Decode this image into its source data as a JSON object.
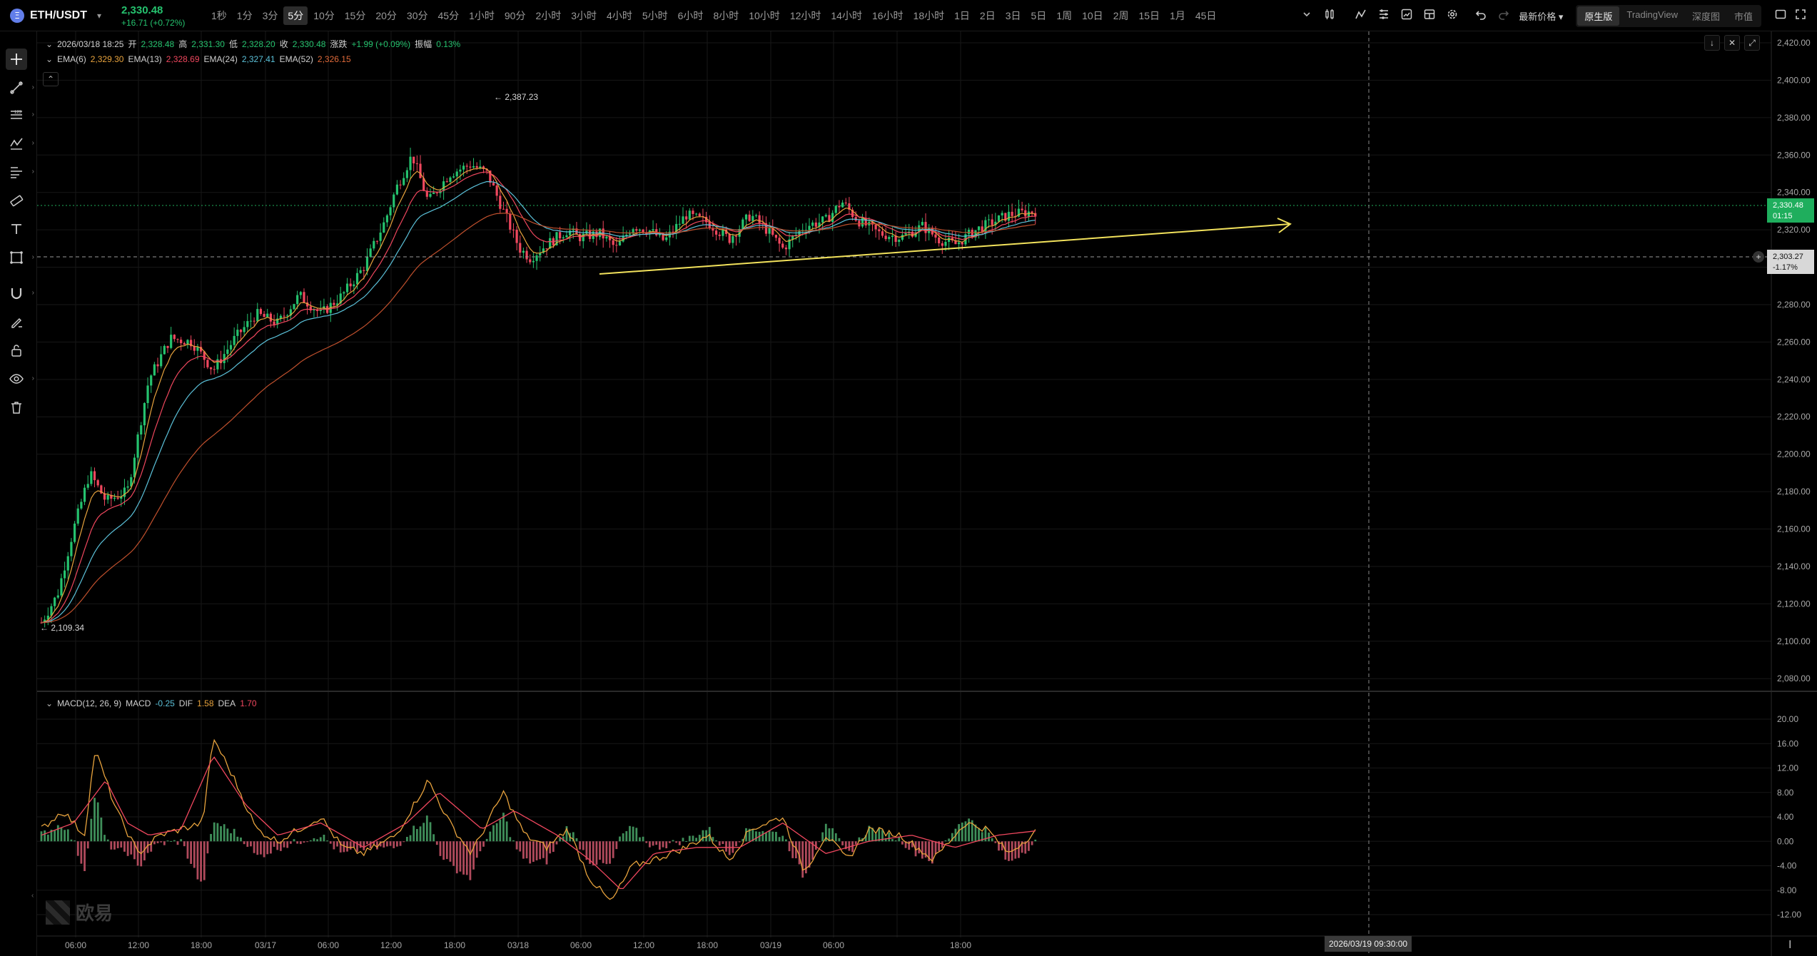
{
  "pair": {
    "name": "ETH/USDT",
    "coin_icon": "Ξ",
    "price": "2,330.48",
    "change": "+16.71 (+0.72%)"
  },
  "intervals": [
    "1秒",
    "1分",
    "3分",
    "5分",
    "10分",
    "15分",
    "20分",
    "30分",
    "45分",
    "1小时",
    "90分",
    "2小时",
    "3小时",
    "4小时",
    "5小时",
    "6小时",
    "8小时",
    "10小时",
    "12小时",
    "14小时",
    "16小时",
    "18小时",
    "1日",
    "2日",
    "3日",
    "5日",
    "1周",
    "10日",
    "2周",
    "15日",
    "1月",
    "45日"
  ],
  "active_interval": "5分",
  "toolbar_icons": [
    "dropdown-icon",
    "candle-type-icon",
    "indicators-icon",
    "templates-icon",
    "alert-icon",
    "layout-icon",
    "settings-icon",
    "undo-icon",
    "redo-icon"
  ],
  "top_right": {
    "price_type": "最新价格",
    "views": [
      "原生版",
      "TradingView",
      "深度图",
      "市值"
    ],
    "active_view": "原生版"
  },
  "left_tools": [
    "crosshair-icon",
    "trendline-icon",
    "fib-icon",
    "pattern-icon",
    "prediction-icon",
    "measure-icon",
    "text-icon",
    "shapes-icon",
    "magnet-icon",
    "draw-lock-icon",
    "lock-icon",
    "eye-icon",
    "trash-icon"
  ],
  "legend": {
    "date": "2026/03/18 18:25",
    "open_label": "开",
    "open": "2,328.48",
    "high_label": "高",
    "high": "2,331.30",
    "low_label": "低",
    "low": "2,328.20",
    "close_label": "收",
    "close": "2,330.48",
    "change_label": "涨跌",
    "change": "+1.99 (+0.09%)",
    "amp_label": "振幅",
    "amp": "0.13%",
    "ema6_label": "EMA(6)",
    "ema6": "2,329.30",
    "ema13_label": "EMA(13)",
    "ema13": "2,328.69",
    "ema24_label": "EMA(24)",
    "ema24": "2,327.41",
    "ema52_label": "EMA(52)",
    "ema52": "2,326.15"
  },
  "macd_legend": {
    "title": "MACD(12, 26, 9)",
    "macd_label": "MACD",
    "macd": "-0.25",
    "dif_label": "DIF",
    "dif": "1.58",
    "dea_label": "DEA",
    "dea": "1.70"
  },
  "last_price": {
    "price": "2,330.48",
    "countdown": "01:15"
  },
  "alert_price": {
    "price": "2,303.27",
    "pct": "-1.17%"
  },
  "crosshair_time": "2026/03/19 09:30:00",
  "watermark": "欧易",
  "colors": {
    "up": "#25c26e",
    "down": "#f0475e",
    "ema6": "#e8a33d",
    "ema13": "#f0475e",
    "ema24": "#5bc1d9",
    "ema52": "#c0502d",
    "trendline": "#f2e25c"
  },
  "chart_data": {
    "type": "candlestick",
    "price_axis": {
      "min": 2090,
      "max": 2420,
      "ticks": [
        "2,420.00",
        "2,400.00",
        "2,380.00",
        "2,360.00",
        "2,340.00",
        "2,320.00",
        "2,300.00",
        "2,280.00",
        "2,260.00",
        "2,240.00",
        "2,220.00",
        "2,200.00",
        "2,180.00",
        "2,160.00",
        "2,140.00",
        "2,120.00",
        "2,100.00",
        "2,080.00"
      ],
      "tick_values": [
        2420,
        2400,
        2380,
        2360,
        2340,
        2320,
        2300,
        2280,
        2260,
        2240,
        2220,
        2200,
        2180,
        2160,
        2140,
        2120,
        2100,
        2080
      ]
    },
    "time_axis": {
      "labels": [
        "06:00",
        "12:00",
        "18:00",
        "03/17",
        "06:00",
        "12:00",
        "18:00",
        "03/18",
        "06:00",
        "12:00",
        "18:00",
        "03/19",
        "06:00",
        "",
        "18:00"
      ]
    },
    "high_marker": "2,387.23",
    "low_marker": "2,109.34",
    "price_path": [
      [
        0,
        2110
      ],
      [
        0.015,
        2125
      ],
      [
        0.03,
        2160
      ],
      [
        0.045,
        2190
      ],
      [
        0.06,
        2175
      ],
      [
        0.08,
        2180
      ],
      [
        0.1,
        2240
      ],
      [
        0.12,
        2262
      ],
      [
        0.14,
        2260
      ],
      [
        0.16,
        2245
      ],
      [
        0.18,
        2262
      ],
      [
        0.2,
        2275
      ],
      [
        0.22,
        2270
      ],
      [
        0.24,
        2285
      ],
      [
        0.26,
        2275
      ],
      [
        0.28,
        2285
      ],
      [
        0.3,
        2300
      ],
      [
        0.32,
        2325
      ],
      [
        0.33,
        2342
      ],
      [
        0.345,
        2360
      ],
      [
        0.36,
        2335
      ],
      [
        0.38,
        2350
      ],
      [
        0.4,
        2355
      ],
      [
        0.415,
        2350
      ],
      [
        0.43,
        2330
      ],
      [
        0.445,
        2310
      ],
      [
        0.455,
        2305
      ],
      [
        0.47,
        2312
      ],
      [
        0.49,
        2320
      ],
      [
        0.5,
        2316
      ],
      [
        0.52,
        2318
      ],
      [
        0.535,
        2310
      ],
      [
        0.55,
        2322
      ],
      [
        0.565,
        2320
      ],
      [
        0.58,
        2314
      ],
      [
        0.6,
        2328
      ],
      [
        0.62,
        2324
      ],
      [
        0.64,
        2315
      ],
      [
        0.66,
        2328
      ],
      [
        0.675,
        2320
      ],
      [
        0.69,
        2310
      ],
      [
        0.71,
        2322
      ],
      [
        0.73,
        2325
      ],
      [
        0.745,
        2335
      ],
      [
        0.76,
        2325
      ],
      [
        0.78,
        2318
      ],
      [
        0.8,
        2316
      ],
      [
        0.82,
        2322
      ],
      [
        0.835,
        2315
      ],
      [
        0.85,
        2312
      ],
      [
        0.87,
        2320
      ],
      [
        0.9,
        2328
      ],
      [
        0.925,
        2330
      ]
    ],
    "macd": {
      "min": -12,
      "max": 20,
      "ticks": [
        "20.00",
        "16.00",
        "12.00",
        "8.00",
        "4.00",
        "0.00",
        "-4.00",
        "-8.00",
        "-12.00"
      ],
      "tick_values": [
        20,
        16,
        12,
        8,
        4,
        0,
        -4,
        -8,
        -12
      ],
      "dif_path": [
        [
          0,
          2
        ],
        [
          0.02,
          5
        ],
        [
          0.04,
          1
        ],
        [
          0.05,
          15
        ],
        [
          0.07,
          5
        ],
        [
          0.09,
          -2
        ],
        [
          0.11,
          1
        ],
        [
          0.13,
          2
        ],
        [
          0.15,
          3
        ],
        [
          0.16,
          17
        ],
        [
          0.18,
          10
        ],
        [
          0.2,
          2
        ],
        [
          0.22,
          0
        ],
        [
          0.24,
          2
        ],
        [
          0.26,
          4
        ],
        [
          0.28,
          -1
        ],
        [
          0.3,
          -2
        ],
        [
          0.33,
          1
        ],
        [
          0.36,
          10
        ],
        [
          0.38,
          3
        ],
        [
          0.4,
          -2
        ],
        [
          0.43,
          8
        ],
        [
          0.45,
          1
        ],
        [
          0.47,
          -1
        ],
        [
          0.49,
          2
        ],
        [
          0.51,
          -6
        ],
        [
          0.53,
          -10
        ],
        [
          0.55,
          -4
        ],
        [
          0.57,
          -3
        ],
        [
          0.6,
          -1
        ],
        [
          0.62,
          1
        ],
        [
          0.64,
          -3
        ],
        [
          0.66,
          2
        ],
        [
          0.69,
          4
        ],
        [
          0.71,
          -5
        ],
        [
          0.73,
          1
        ],
        [
          0.75,
          -3
        ],
        [
          0.77,
          2
        ],
        [
          0.8,
          1
        ],
        [
          0.83,
          -3
        ],
        [
          0.86,
          3
        ],
        [
          0.88,
          2
        ],
        [
          0.9,
          -2
        ],
        [
          0.925,
          1.6
        ]
      ],
      "dea_path": [
        [
          0,
          1
        ],
        [
          0.03,
          3
        ],
        [
          0.06,
          10
        ],
        [
          0.08,
          3
        ],
        [
          0.1,
          1
        ],
        [
          0.13,
          2
        ],
        [
          0.16,
          14
        ],
        [
          0.19,
          6
        ],
        [
          0.22,
          1
        ],
        [
          0.26,
          3
        ],
        [
          0.3,
          -1
        ],
        [
          0.34,
          3
        ],
        [
          0.37,
          8
        ],
        [
          0.41,
          2
        ],
        [
          0.44,
          5
        ],
        [
          0.48,
          1
        ],
        [
          0.51,
          -3
        ],
        [
          0.54,
          -8
        ],
        [
          0.57,
          -2
        ],
        [
          0.61,
          -1
        ],
        [
          0.65,
          -1
        ],
        [
          0.69,
          3
        ],
        [
          0.73,
          -2
        ],
        [
          0.77,
          0
        ],
        [
          0.81,
          1
        ],
        [
          0.85,
          -1
        ],
        [
          0.89,
          1
        ],
        [
          0.925,
          1.7
        ]
      ]
    }
  }
}
